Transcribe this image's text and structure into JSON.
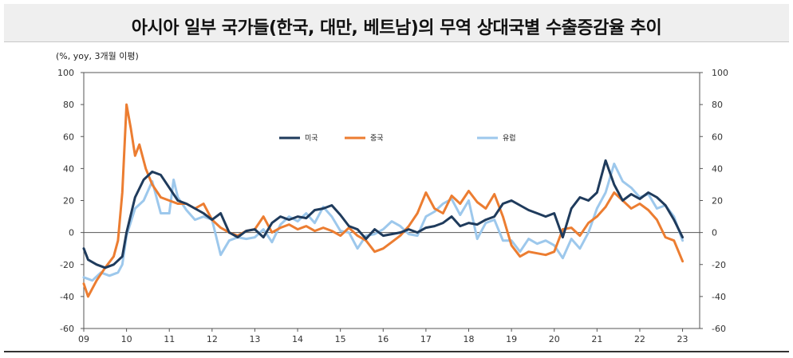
{
  "title": "아시아 일부 국가들(한국, 대만, 베트남)의 무역 상대국별 수출증감율 추이",
  "unit_label": "(%, yoy, 3개월 이평)",
  "colors": {
    "us": "#1f3b5c",
    "china": "#ec7d31",
    "eu": "#9dc8ec"
  },
  "chart_data": {
    "type": "line",
    "title": "아시아 일부 국가들(한국, 대만, 베트남)의 무역 상대국별 수출증감율 추이",
    "ylabel": "(%, yoy, 3개월 이평)",
    "xlim": [
      2009,
      2023.4
    ],
    "ylim": [
      -60,
      100
    ],
    "yticks": [
      "100",
      "80",
      "60",
      "40",
      "20",
      "0",
      "-20",
      "-40",
      "-60"
    ],
    "yticks_right": [
      "100",
      "80",
      "60",
      "40",
      "20",
      "0",
      "-20",
      "-40",
      "-60"
    ],
    "xticks": [
      "09",
      "10",
      "11",
      "12",
      "13",
      "14",
      "15",
      "16",
      "17",
      "18",
      "19",
      "20",
      "21",
      "22",
      "23"
    ],
    "grid": false,
    "legend": "top-center",
    "series": [
      {
        "name": "미국",
        "x": [
          2009.0,
          2009.1,
          2009.3,
          2009.5,
          2009.7,
          2009.9,
          2010.0,
          2010.2,
          2010.4,
          2010.6,
          2010.8,
          2011.0,
          2011.2,
          2011.4,
          2011.6,
          2011.8,
          2012.0,
          2012.2,
          2012.4,
          2012.6,
          2012.8,
          2013.0,
          2013.2,
          2013.4,
          2013.6,
          2013.8,
          2014.0,
          2014.2,
          2014.4,
          2014.6,
          2014.8,
          2015.0,
          2015.2,
          2015.4,
          2015.6,
          2015.8,
          2016.0,
          2016.2,
          2016.4,
          2016.6,
          2016.8,
          2017.0,
          2017.2,
          2017.4,
          2017.6,
          2017.8,
          2018.0,
          2018.2,
          2018.4,
          2018.6,
          2018.8,
          2019.0,
          2019.2,
          2019.4,
          2019.6,
          2019.8,
          2020.0,
          2020.2,
          2020.4,
          2020.6,
          2020.8,
          2021.0,
          2021.2,
          2021.4,
          2021.6,
          2021.8,
          2022.0,
          2022.2,
          2022.4,
          2022.6,
          2022.8,
          2023.0
        ],
        "values": [
          -10,
          -17,
          -20,
          -22,
          -20,
          -15,
          0,
          22,
          33,
          38,
          36,
          28,
          20,
          18,
          15,
          12,
          8,
          12,
          0,
          -3,
          1,
          2,
          -3,
          6,
          10,
          8,
          10,
          9,
          14,
          15,
          17,
          11,
          4,
          2,
          -4,
          2,
          -2,
          -1,
          0,
          2,
          0,
          3,
          4,
          6,
          10,
          4,
          6,
          5,
          8,
          10,
          18,
          20,
          17,
          14,
          12,
          10,
          12,
          -3,
          15,
          22,
          20,
          25,
          45,
          30,
          20,
          24,
          21,
          25,
          22,
          17,
          8,
          -3
        ]
      },
      {
        "name": "중국",
        "x": [
          2009.0,
          2009.1,
          2009.3,
          2009.5,
          2009.7,
          2009.8,
          2009.9,
          2010.0,
          2010.1,
          2010.2,
          2010.3,
          2010.45,
          2010.6,
          2010.8,
          2011.0,
          2011.2,
          2011.4,
          2011.6,
          2011.8,
          2012.0,
          2012.2,
          2012.4,
          2012.6,
          2012.8,
          2013.0,
          2013.2,
          2013.4,
          2013.6,
          2013.8,
          2014.0,
          2014.2,
          2014.4,
          2014.6,
          2014.8,
          2015.0,
          2015.2,
          2015.4,
          2015.6,
          2015.8,
          2016.0,
          2016.2,
          2016.4,
          2016.6,
          2016.8,
          2017.0,
          2017.2,
          2017.4,
          2017.6,
          2017.8,
          2018.0,
          2018.2,
          2018.4,
          2018.6,
          2018.8,
          2019.0,
          2019.2,
          2019.4,
          2019.6,
          2019.8,
          2020.0,
          2020.2,
          2020.4,
          2020.6,
          2020.8,
          2021.0,
          2021.2,
          2021.4,
          2021.6,
          2021.8,
          2022.0,
          2022.2,
          2022.4,
          2022.6,
          2022.8,
          2023.0
        ],
        "values": [
          -32,
          -40,
          -30,
          -22,
          -15,
          -5,
          25,
          80,
          65,
          48,
          55,
          40,
          30,
          22,
          20,
          18,
          18,
          15,
          18,
          8,
          3,
          0,
          -2,
          1,
          2,
          10,
          0,
          3,
          5,
          2,
          4,
          1,
          3,
          1,
          -2,
          3,
          -2,
          -5,
          -12,
          -10,
          -6,
          -2,
          4,
          12,
          25,
          15,
          12,
          23,
          18,
          26,
          19,
          15,
          24,
          10,
          -8,
          -15,
          -12,
          -13,
          -14,
          -12,
          2,
          3,
          -2,
          6,
          10,
          16,
          25,
          20,
          15,
          18,
          14,
          8,
          -3,
          -5,
          -18
        ]
      },
      {
        "name": "유럽",
        "x": [
          2009.0,
          2009.2,
          2009.4,
          2009.6,
          2009.8,
          2009.9,
          2010.0,
          2010.2,
          2010.4,
          2010.6,
          2010.8,
          2011.0,
          2011.1,
          2011.2,
          2011.4,
          2011.6,
          2011.8,
          2012.0,
          2012.2,
          2012.4,
          2012.6,
          2012.8,
          2013.0,
          2013.2,
          2013.4,
          2013.6,
          2013.8,
          2014.0,
          2014.2,
          2014.4,
          2014.6,
          2014.8,
          2015.0,
          2015.2,
          2015.4,
          2015.6,
          2015.8,
          2016.0,
          2016.2,
          2016.4,
          2016.6,
          2016.8,
          2017.0,
          2017.2,
          2017.4,
          2017.6,
          2017.8,
          2018.0,
          2018.2,
          2018.4,
          2018.6,
          2018.8,
          2019.0,
          2019.2,
          2019.4,
          2019.6,
          2019.8,
          2020.0,
          2020.2,
          2020.4,
          2020.6,
          2020.8,
          2021.0,
          2021.2,
          2021.4,
          2021.6,
          2021.8,
          2022.0,
          2022.2,
          2022.4,
          2022.6,
          2022.8,
          2023.0
        ],
        "values": [
          -28,
          -30,
          -25,
          -27,
          -25,
          -20,
          -2,
          15,
          20,
          32,
          12,
          12,
          33,
          22,
          14,
          8,
          10,
          8,
          -14,
          -5,
          -3,
          -4,
          -3,
          2,
          -6,
          5,
          10,
          7,
          12,
          6,
          16,
          10,
          1,
          0,
          -10,
          -2,
          -1,
          2,
          7,
          4,
          -1,
          -2,
          10,
          13,
          18,
          21,
          11,
          20,
          -4,
          6,
          8,
          -5,
          -5,
          -12,
          -4,
          -7,
          -5,
          -8,
          -16,
          -4,
          -10,
          0,
          15,
          25,
          43,
          32,
          28,
          22,
          24,
          15,
          17,
          10,
          -5
        ]
      }
    ]
  }
}
